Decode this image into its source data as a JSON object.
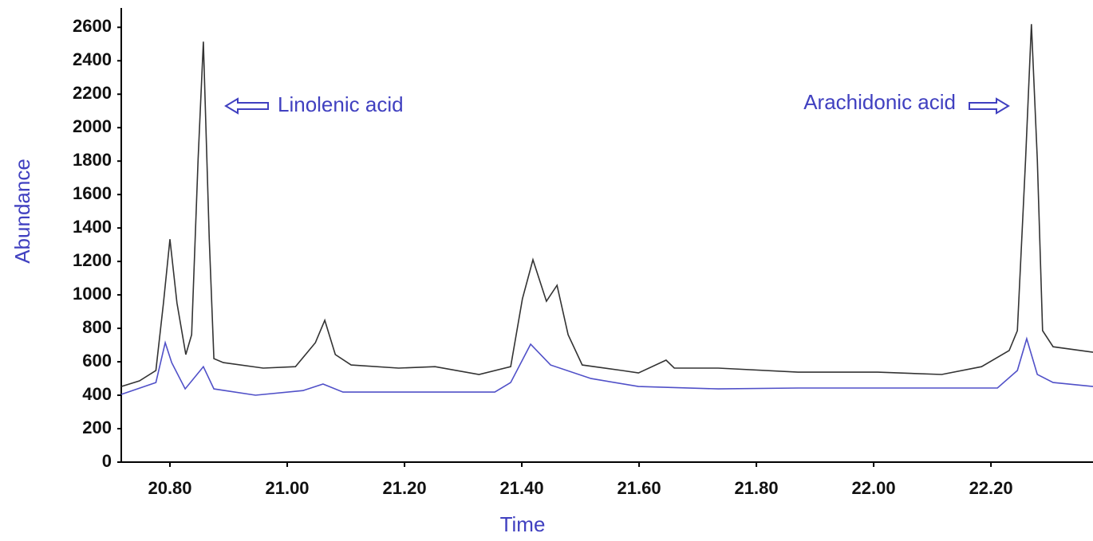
{
  "chart_data": {
    "type": "line",
    "x_label": "Time",
    "y_label": "Abundance",
    "annotations": [
      "Linolenic acid",
      "Arachidonic acid"
    ],
    "xlim": [
      20.717,
      22.374
    ],
    "ylim": [
      0,
      2700
    ],
    "xticks": [
      {
        "value": 20.8,
        "label": "20.80"
      },
      {
        "value": 21,
        "label": "21.00"
      },
      {
        "value": 21.2,
        "label": "21.20"
      },
      {
        "value": 21.4,
        "label": "21.40"
      },
      {
        "value": 21.6,
        "label": "21.60"
      },
      {
        "value": 21.8,
        "label": "21.80"
      },
      {
        "value": 22,
        "label": "22.00"
      },
      {
        "value": 22.2,
        "label": "22.20"
      }
    ],
    "yticks": [
      0,
      200,
      400,
      600,
      800,
      1000,
      1200,
      1400,
      1600,
      1800,
      2000,
      2200,
      2400,
      2600
    ],
    "series": [
      {
        "color": "#333333",
        "x": [
          20.717,
          20.748,
          20.776,
          20.789,
          20.8,
          20.812,
          20.827,
          20.837,
          20.848,
          20.857,
          20.867,
          20.875,
          20.891,
          20.959,
          21.014,
          21.048,
          21.064,
          21.082,
          21.109,
          21.19,
          21.252,
          21.327,
          21.381,
          21.401,
          21.419,
          21.442,
          21.46,
          21.479,
          21.503,
          21.571,
          21.599,
          21.646,
          21.66,
          21.735,
          21.871,
          22.007,
          22.116,
          22.184,
          22.231,
          22.245,
          22.259,
          22.269,
          22.279,
          22.288,
          22.306,
          22.374
        ],
        "values": [
          452,
          486,
          548,
          952,
          1333,
          952,
          643,
          762,
          1810,
          2514,
          1333,
          619,
          595,
          562,
          571,
          714,
          848,
          643,
          581,
          562,
          571,
          524,
          571,
          976,
          1210,
          962,
          1057,
          762,
          581,
          548,
          533,
          610,
          562,
          562,
          538,
          538,
          524,
          571,
          667,
          786,
          1810,
          2619,
          1810,
          786,
          690,
          657
        ]
      },
      {
        "color": "#5050c8",
        "x": [
          20.717,
          20.776,
          20.792,
          20.803,
          20.826,
          20.857,
          20.875,
          20.946,
          21.027,
          21.061,
          21.095,
          21.19,
          21.354,
          21.381,
          21.415,
          21.449,
          21.518,
          21.599,
          21.735,
          21.871,
          22.007,
          22.211,
          22.245,
          22.261,
          22.279,
          22.306,
          22.374
        ],
        "values": [
          405,
          476,
          714,
          595,
          438,
          571,
          438,
          400,
          428,
          467,
          419,
          419,
          419,
          476,
          705,
          581,
          500,
          452,
          438,
          443,
          443,
          443,
          548,
          738,
          524,
          476,
          452
        ]
      }
    ]
  }
}
